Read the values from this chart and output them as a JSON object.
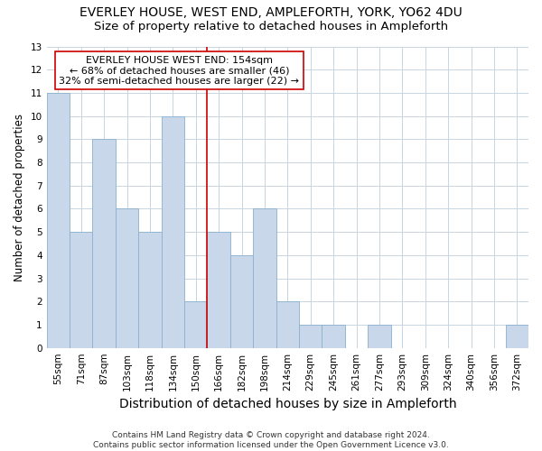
{
  "title": "EVERLEY HOUSE, WEST END, AMPLEFORTH, YORK, YO62 4DU",
  "subtitle": "Size of property relative to detached houses in Ampleforth",
  "xlabel": "Distribution of detached houses by size in Ampleforth",
  "ylabel": "Number of detached properties",
  "categories": [
    "55sqm",
    "71sqm",
    "87sqm",
    "103sqm",
    "118sqm",
    "134sqm",
    "150sqm",
    "166sqm",
    "182sqm",
    "198sqm",
    "214sqm",
    "229sqm",
    "245sqm",
    "261sqm",
    "277sqm",
    "293sqm",
    "309sqm",
    "324sqm",
    "340sqm",
    "356sqm",
    "372sqm"
  ],
  "values": [
    11,
    5,
    9,
    6,
    5,
    10,
    2,
    5,
    4,
    6,
    2,
    1,
    1,
    0,
    1,
    0,
    0,
    0,
    0,
    0,
    1
  ],
  "bar_color": "#c8d8ea",
  "bar_edge_color": "#8ab0cc",
  "red_line_x": 6.5,
  "ylim": [
    0,
    13
  ],
  "yticks": [
    0,
    1,
    2,
    3,
    4,
    5,
    6,
    7,
    8,
    9,
    10,
    11,
    12,
    13
  ],
  "annotation_title": "EVERLEY HOUSE WEST END: 154sqm",
  "annotation_line1": "← 68% of detached houses are smaller (46)",
  "annotation_line2": "32% of semi-detached houses are larger (22) →",
  "footer_line1": "Contains HM Land Registry data © Crown copyright and database right 2024.",
  "footer_line2": "Contains public sector information licensed under the Open Government Licence v3.0.",
  "background_color": "#ffffff",
  "grid_color": "#c8d4e0",
  "title_fontsize": 10,
  "subtitle_fontsize": 9.5,
  "xlabel_fontsize": 10,
  "ylabel_fontsize": 8.5,
  "tick_fontsize": 7.5,
  "annotation_fontsize": 8,
  "footer_fontsize": 6.5,
  "annotation_box_edge": "#cc0000",
  "red_line_color": "#cc0000"
}
